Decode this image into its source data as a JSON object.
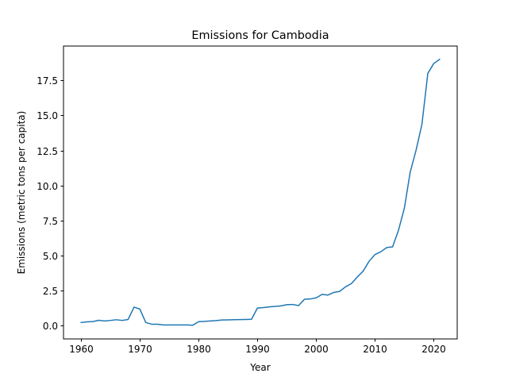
{
  "chart_data": {
    "type": "line",
    "title": "Emissions for Cambodia",
    "xlabel": "Year",
    "ylabel": "Emissions (metric tons per capita)",
    "xlim": [
      1957,
      2024
    ],
    "ylim": [
      -0.95,
      19.95
    ],
    "xticks": [
      1960,
      1970,
      1980,
      1990,
      2000,
      2010,
      2020
    ],
    "yticks": [
      0.0,
      2.5,
      5.0,
      7.5,
      10.0,
      12.5,
      15.0,
      17.5
    ],
    "ytick_labels": [
      "0.0",
      "2.5",
      "5.0",
      "7.5",
      "10.0",
      "12.5",
      "15.0",
      "17.5"
    ],
    "grid": false,
    "line_color": "#1f77b4",
    "series": [
      {
        "x": [
          1960,
          1961,
          1962,
          1963,
          1964,
          1965,
          1966,
          1967,
          1968,
          1969,
          1970,
          1971,
          1972,
          1973,
          1974,
          1975,
          1976,
          1977,
          1978,
          1979,
          1980,
          1981,
          1982,
          1983,
          1984,
          1985,
          1986,
          1987,
          1988,
          1989,
          1990,
          1991,
          1992,
          1993,
          1994,
          1995,
          1996,
          1997,
          1998,
          1999,
          2000,
          2001,
          2002,
          2003,
          2004,
          2005,
          2006,
          2007,
          2008,
          2009,
          2010,
          2011,
          2012,
          2013,
          2014,
          2015,
          2016,
          2017,
          2018,
          2019,
          2020,
          2021
        ],
        "values": [
          0.22,
          0.27,
          0.29,
          0.38,
          0.33,
          0.37,
          0.42,
          0.37,
          0.44,
          1.32,
          1.18,
          0.22,
          0.1,
          0.1,
          0.05,
          0.05,
          0.05,
          0.05,
          0.05,
          0.03,
          0.28,
          0.3,
          0.33,
          0.36,
          0.4,
          0.41,
          0.42,
          0.43,
          0.44,
          0.45,
          1.25,
          1.29,
          1.34,
          1.37,
          1.41,
          1.49,
          1.51,
          1.43,
          1.88,
          1.9,
          1.98,
          2.23,
          2.18,
          2.37,
          2.44,
          2.77,
          3.0,
          3.47,
          3.89,
          4.59,
          5.07,
          5.27,
          5.57,
          5.62,
          6.79,
          8.36,
          10.95,
          12.52,
          14.37,
          18.0,
          18.7,
          19.0
        ]
      }
    ]
  }
}
